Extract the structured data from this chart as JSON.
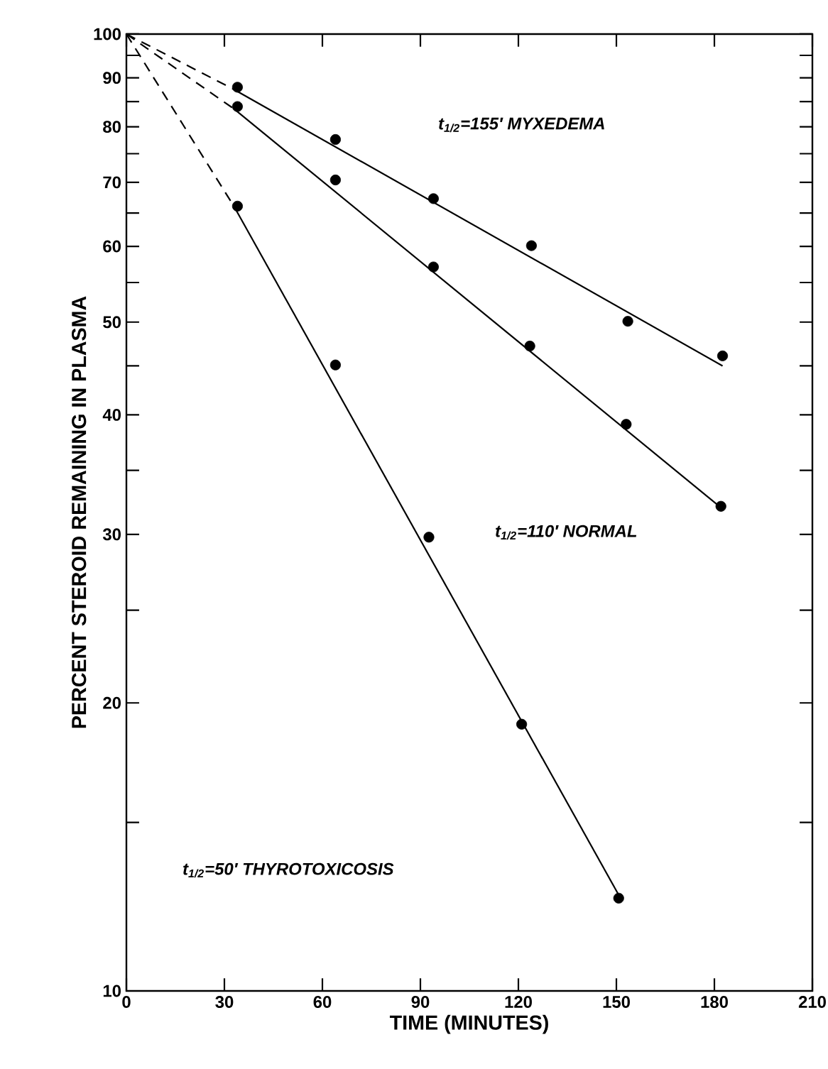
{
  "chart_data": {
    "type": "scatter",
    "xlabel": "TIME (MINUTES)",
    "ylabel": "PERCENT STEROID REMAINING IN PLASMA",
    "log": "y",
    "xlim": [
      0,
      210
    ],
    "xticks": [
      0,
      30,
      60,
      90,
      120,
      150,
      180,
      210
    ],
    "ylim": [
      10,
      100
    ],
    "yticks": [
      10,
      {
        "value": 15,
        "label": null
      },
      20,
      {
        "value": 25,
        "label": null
      },
      30,
      {
        "value": 35,
        "label": null
      },
      40,
      {
        "value": 45,
        "label": null
      },
      50,
      {
        "value": 55,
        "label": null
      },
      60,
      {
        "value": 65,
        "label": null
      },
      70,
      {
        "value": 75,
        "label": null
      },
      80,
      {
        "value": 85,
        "label": null
      },
      90,
      {
        "value": 95,
        "label": null
      },
      100
    ],
    "grid": false,
    "series": [
      {
        "type": "scatter",
        "marker": "circle",
        "color": "#000000",
        "x": [
          34,
          64,
          94,
          124,
          153.5,
          182.5
        ],
        "values": [
          88,
          77.6,
          67.3,
          60.1,
          50.1,
          46.1
        ]
      },
      {
        "type": "scatter",
        "marker": "circle",
        "color": "#000000",
        "x": [
          34,
          64,
          94,
          123.5,
          153,
          182
        ],
        "values": [
          84,
          70.4,
          57.1,
          47.2,
          39.1,
          32.1
        ]
      },
      {
        "type": "scatter",
        "marker": "circle",
        "color": "#000000",
        "x": [
          34,
          64,
          92.6,
          121,
          150.7
        ],
        "values": [
          66.1,
          45.1,
          29.8,
          19,
          12.5
        ]
      },
      {
        "type": "line",
        "color": "#000000",
        "line_style": "dashed",
        "marker": "none",
        "x": [
          0,
          33
        ],
        "values": [
          100,
          87.5
        ]
      },
      {
        "type": "line",
        "color": "#000000",
        "line_style": "solid",
        "marker": "none",
        "x": [
          33,
          182.5
        ],
        "values": [
          87.5,
          45
        ]
      },
      {
        "type": "line",
        "color": "#000000",
        "line_style": "dashed",
        "marker": "none",
        "x": [
          0,
          33
        ],
        "values": [
          100,
          83.5
        ]
      },
      {
        "type": "line",
        "color": "#000000",
        "line_style": "solid",
        "marker": "none",
        "x": [
          33,
          182
        ],
        "values": [
          83.5,
          32
        ]
      },
      {
        "type": "line",
        "color": "#000000",
        "line_style": "dashed",
        "marker": "none",
        "x": [
          0,
          33
        ],
        "values": [
          100,
          66
        ]
      },
      {
        "type": "line",
        "color": "#000000",
        "line_style": "solid",
        "marker": "none",
        "x": [
          33,
          150.7
        ],
        "values": [
          66,
          12.6
        ]
      }
    ],
    "annotations": [
      "t$_{1/2}$=155′ MYXEDEMA",
      "t$_{1/2}$=110′ NORMAL",
      "t$_{1/2}$=50′ THYROTOXICOSIS"
    ]
  }
}
